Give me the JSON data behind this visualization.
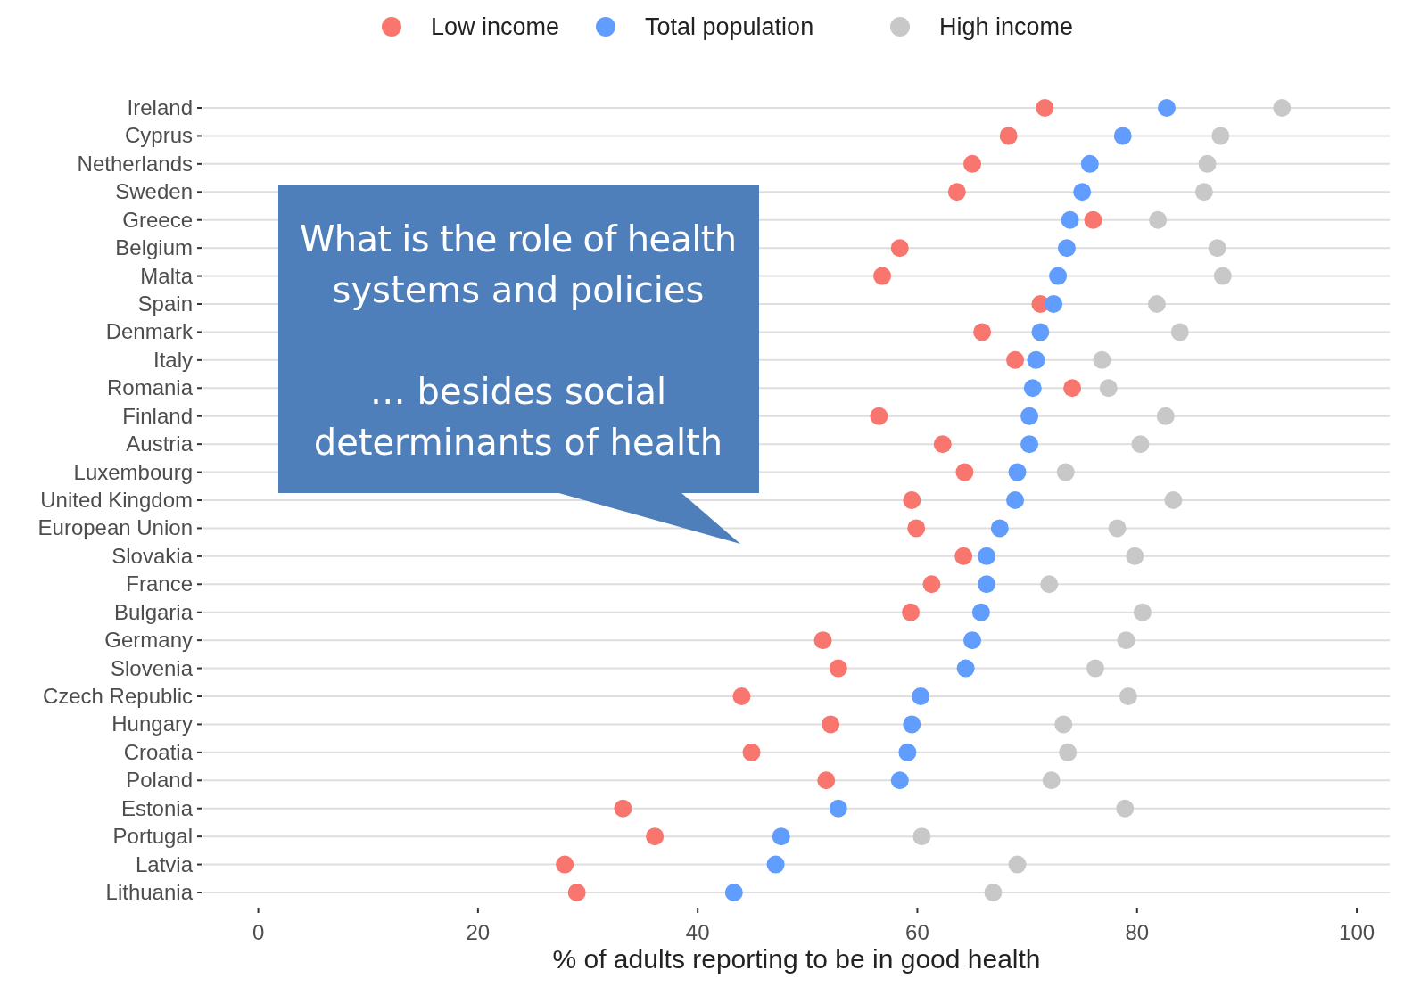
{
  "chart_data": {
    "type": "scatter",
    "orientation": "horizontal",
    "xlabel": "% of adults reporting to be in good health",
    "categories": [
      "Ireland",
      "Cyprus",
      "Netherlands",
      "Sweden",
      "Greece",
      "Belgium",
      "Malta",
      "Spain",
      "Denmark",
      "Italy",
      "Romania",
      "Finland",
      "Austria",
      "Luxembourg",
      "United Kingdom",
      "European Union",
      "Slovakia",
      "France",
      "Bulgaria",
      "Germany",
      "Slovenia",
      "Czech Republic",
      "Hungary",
      "Croatia",
      "Poland",
      "Estonia",
      "Portugal",
      "Latvia",
      "Lithuania"
    ],
    "series": [
      {
        "name": "Low income",
        "color": "#f8766d",
        "values": [
          71.6,
          68.3,
          65.0,
          63.6,
          76.0,
          58.4,
          56.8,
          71.2,
          65.9,
          68.9,
          74.1,
          56.5,
          62.3,
          64.3,
          59.5,
          59.9,
          64.2,
          61.3,
          59.4,
          51.4,
          52.8,
          44.0,
          52.1,
          44.9,
          51.7,
          33.2,
          36.1,
          27.9,
          29.0
        ]
      },
      {
        "name": "Total population",
        "color": "#619cff",
        "values": [
          82.7,
          78.7,
          75.7,
          75.0,
          73.9,
          73.6,
          72.8,
          72.4,
          71.2,
          70.8,
          70.5,
          70.2,
          70.2,
          69.1,
          68.9,
          67.5,
          66.3,
          66.3,
          65.8,
          65.0,
          64.4,
          60.3,
          59.5,
          59.1,
          58.4,
          52.8,
          47.6,
          47.1,
          43.3
        ]
      },
      {
        "name": "High income",
        "color": "#c8c8c8",
        "values": [
          93.2,
          87.6,
          86.4,
          86.1,
          81.9,
          87.3,
          87.8,
          81.8,
          83.9,
          76.8,
          77.4,
          82.6,
          80.3,
          73.5,
          83.3,
          78.2,
          79.8,
          72.0,
          80.5,
          79.0,
          76.2,
          79.2,
          73.3,
          73.7,
          72.2,
          78.9,
          60.4,
          69.1,
          66.9
        ]
      }
    ],
    "xlim": [
      -5,
      103
    ],
    "xticks": [
      0,
      20,
      40,
      60,
      80,
      100
    ],
    "grid": "y",
    "legend": "top",
    "marker": "circle",
    "annotations": [
      "What is the role of health systems and policies",
      "… besides social determinants of health"
    ]
  }
}
